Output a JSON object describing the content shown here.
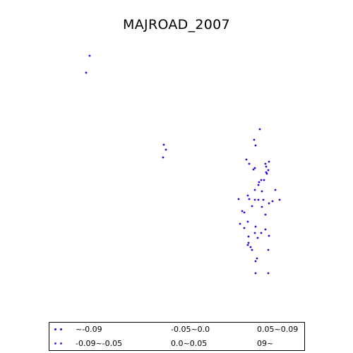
{
  "title": "MAJROAD_2007",
  "colors": {
    "point": "#3a00d4",
    "legend_frame": "#000000",
    "background": "#ffffff"
  },
  "legend": {
    "items": [
      {
        "label": "~-0.09",
        "color": "#3a00d4"
      },
      {
        "label": "-0.09~-0.05",
        "color": "#5a2ee0"
      },
      {
        "label": "-0.05~0.0",
        "color": "#ffffff"
      },
      {
        "label": "0.0~0.05",
        "color": "#ffffff"
      },
      {
        "label": "0.05~0.09",
        "color": "#ffffff"
      },
      {
        "label": "09~",
        "color": "#ffffff"
      }
    ]
  }
}
